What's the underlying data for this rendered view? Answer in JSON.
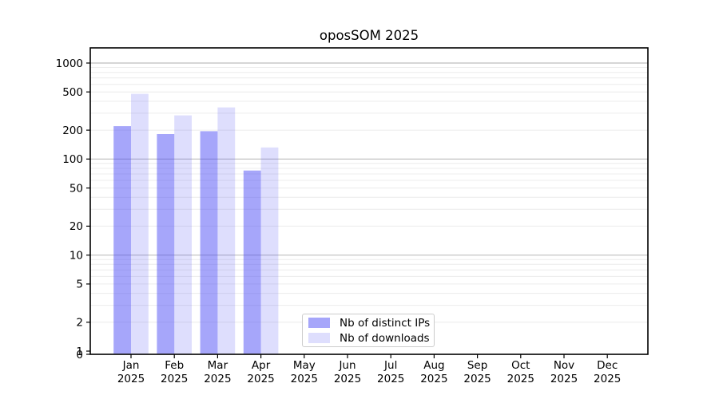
{
  "title": "oposSOM 2025",
  "chart_data": {
    "type": "bar",
    "title": "oposSOM 2025",
    "yscale": "log",
    "grid": "horizontal, minor and major gridlines",
    "legend_position": "inside plot, lower center-left",
    "year_label": "2025",
    "categories": [
      "Jan",
      "Feb",
      "Mar",
      "Apr",
      "May",
      "Jun",
      "Jul",
      "Aug",
      "Sep",
      "Oct",
      "Nov",
      "Dec"
    ],
    "series": [
      {
        "name": "Nb of distinct IPs",
        "color": "rgba(70,70,245,0.48)",
        "values": [
          220,
          182,
          195,
          76,
          null,
          null,
          null,
          null,
          null,
          null,
          null,
          null
        ]
      },
      {
        "name": "Nb of downloads",
        "color": "rgba(70,70,245,0.18)",
        "values": [
          478,
          285,
          345,
          132,
          null,
          null,
          null,
          null,
          null,
          null,
          null,
          null
        ]
      }
    ],
    "yticks": [
      1000,
      500,
      200,
      100,
      50,
      20,
      10,
      5,
      2,
      1,
      0
    ],
    "ylim": [
      0,
      1450
    ],
    "xlabel": "",
    "ylabel": ""
  },
  "colors": {
    "bar_dark": "rgba(70,70,245,0.48)",
    "bar_light": "rgba(70,70,245,0.18)",
    "grid_minor": "#ececec",
    "grid_major": "#bdbdbd",
    "frame": "#000000",
    "legend_border": "#cccccc"
  }
}
